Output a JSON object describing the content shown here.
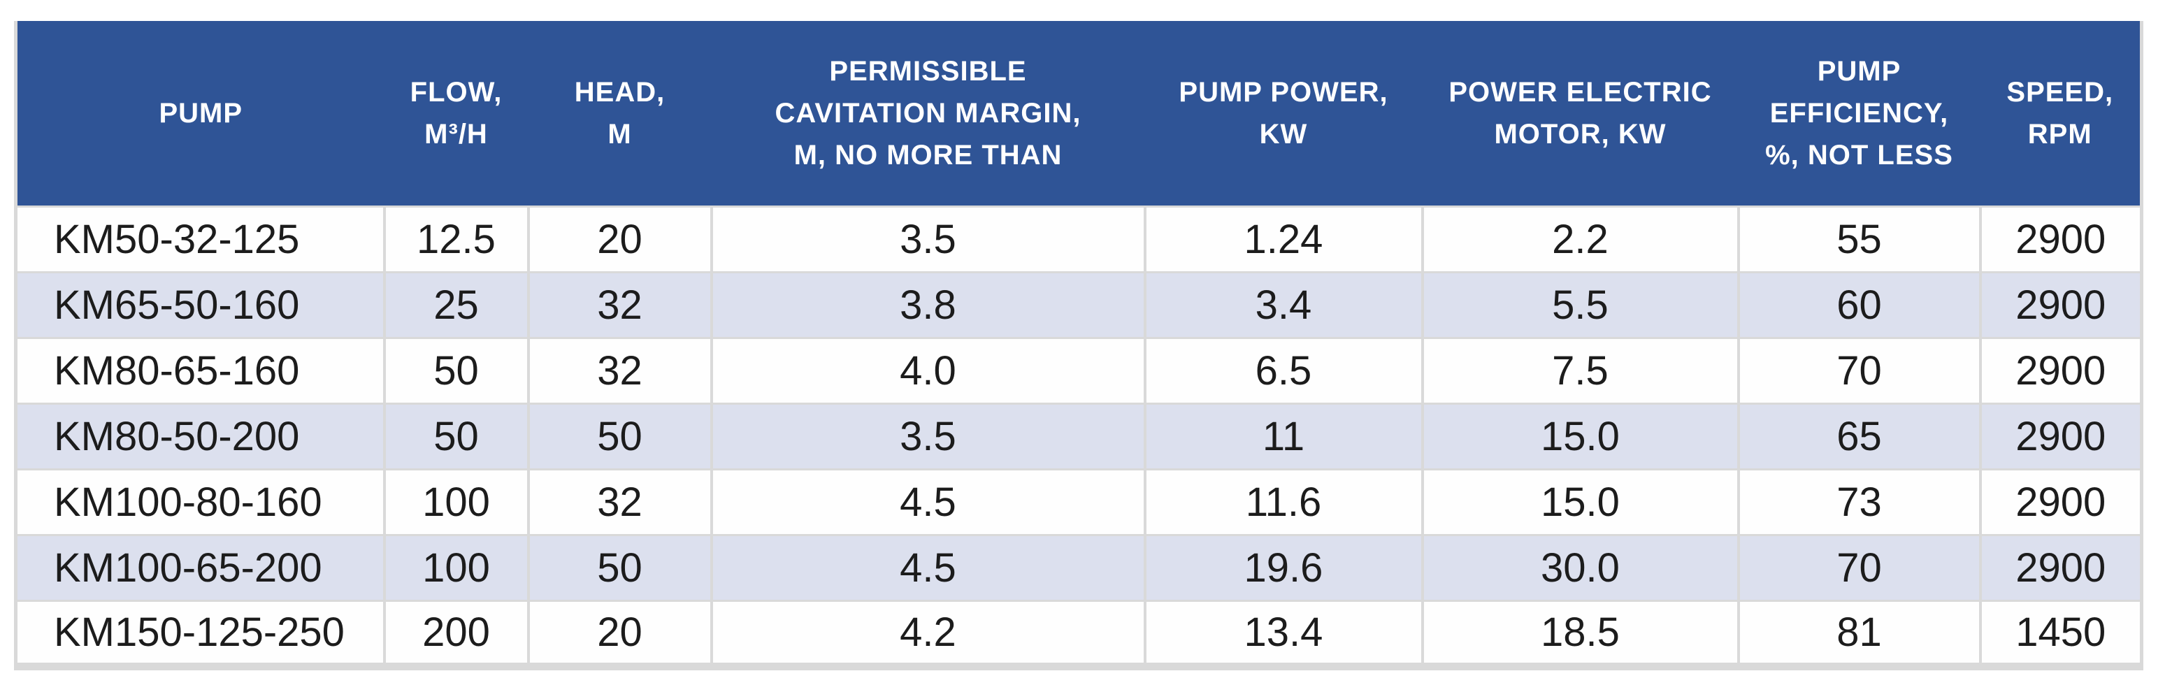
{
  "colors": {
    "header_bg": "#2f5496",
    "header_text": "#ffffff",
    "row_bg": "#fefefe",
    "row_alt_bg": "#dce0ee",
    "border": "#d9d9d9",
    "text": "#1c1c1c"
  },
  "table": {
    "columns": [
      {
        "label": "PUMP"
      },
      {
        "label": "FLOW,\nM³/H"
      },
      {
        "label": "HEAD,\nM"
      },
      {
        "label": "PERMISSIBLE\nCAVITATION MARGIN,\nM, NO MORE THAN"
      },
      {
        "label": "PUMP POWER,\nKW"
      },
      {
        "label": "POWER ELECTRIC\nMOTOR, KW"
      },
      {
        "label": "PUMP\nEFFICIENCY,\n%, NOT LESS"
      },
      {
        "label": "SPEED,\nRPM"
      }
    ],
    "rows": [
      [
        "KM50-32-125",
        "12.5",
        "20",
        "3.5",
        "1.24",
        "2.2",
        "55",
        "2900"
      ],
      [
        "KM65-50-160",
        "25",
        "32",
        "3.8",
        "3.4",
        "5.5",
        "60",
        "2900"
      ],
      [
        "KM80-65-160",
        "50",
        "32",
        "4.0",
        "6.5",
        "7.5",
        "70",
        "2900"
      ],
      [
        "KM80-50-200",
        "50",
        "50",
        "3.5",
        "11",
        "15.0",
        "65",
        "2900"
      ],
      [
        "KM100-80-160",
        "100",
        "32",
        "4.5",
        "11.6",
        "15.0",
        "73",
        "2900"
      ],
      [
        "KM100-65-200",
        "100",
        "50",
        "4.5",
        "19.6",
        "30.0",
        "70",
        "2900"
      ],
      [
        "KM150-125-250",
        "200",
        "20",
        "4.2",
        "13.4",
        "18.5",
        "81",
        "1450"
      ]
    ]
  }
}
